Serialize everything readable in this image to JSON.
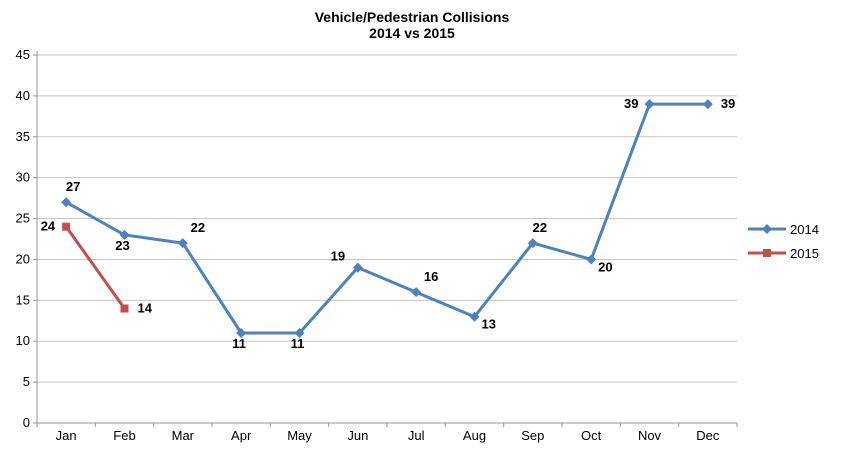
{
  "title": {
    "line1": "Vehicle/Pedestrian Collisions",
    "line2": "2014 vs 2015"
  },
  "colors": {
    "background": "#FFFFFF",
    "text": "#000000",
    "gridline": "#C6C6C6",
    "axis": "#969696",
    "series_2014": "#4F81BD",
    "series_2015": "#C0504D"
  },
  "legend": {
    "position": "right",
    "items": [
      {
        "label": "2014",
        "marker": "diamond",
        "color": "#4F81BD"
      },
      {
        "label": "2015",
        "marker": "square",
        "color": "#C0504D"
      }
    ]
  },
  "chart_data": {
    "type": "line",
    "title": "Vehicle/Pedestrian Collisions",
    "subtitle": "2014 vs 2015",
    "categories": [
      "Jan",
      "Feb",
      "Mar",
      "Apr",
      "May",
      "Jun",
      "Jul",
      "Aug",
      "Sep",
      "Oct",
      "Nov",
      "Dec"
    ],
    "series": [
      {
        "name": "2014",
        "color": "#4F81BD",
        "marker": "diamond",
        "values": [
          27,
          23,
          22,
          11,
          11,
          19,
          16,
          13,
          22,
          20,
          39,
          39
        ],
        "label_positions": [
          "above",
          "below",
          "above-right",
          "below",
          "below",
          "above-left",
          "above-right",
          "right-low",
          "above",
          "right-low",
          "left",
          "right"
        ]
      },
      {
        "name": "2015",
        "color": "#C0504D",
        "marker": "square",
        "values": [
          24,
          14,
          null,
          null,
          null,
          null,
          null,
          null,
          null,
          null,
          null,
          null
        ],
        "label_positions": [
          "left",
          "right",
          null,
          null,
          null,
          null,
          null,
          null,
          null,
          null,
          null,
          null
        ]
      }
    ],
    "ylim": [
      0,
      45
    ],
    "ytick_step": 5,
    "grid": true,
    "data_labels": true,
    "legend_position": "right"
  }
}
